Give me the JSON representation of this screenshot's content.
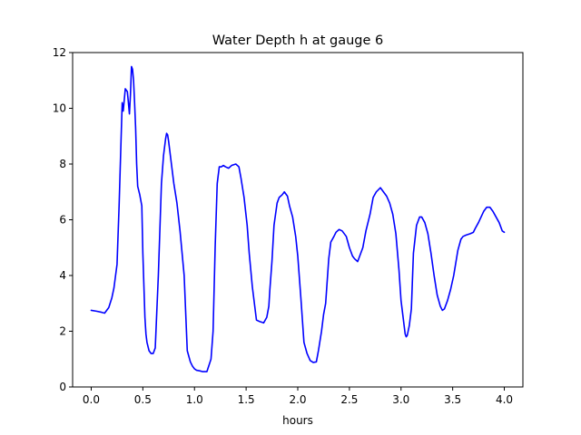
{
  "chart_data": {
    "type": "line",
    "title": "Water Depth h at gauge 6",
    "xlabel": "hours",
    "ylabel": "",
    "xlim": [
      -0.18,
      4.18
    ],
    "ylim": [
      0,
      12
    ],
    "xticks": [
      "0.0",
      "0.5",
      "1.0",
      "1.5",
      "2.0",
      "2.5",
      "3.0",
      "3.5",
      "4.0"
    ],
    "yticks": [
      "0",
      "2",
      "4",
      "6",
      "8",
      "10",
      "12"
    ],
    "grid": false,
    "colors": {
      "line": "#0000ff"
    },
    "series": [
      {
        "x": [
          0.0,
          0.05,
          0.1,
          0.13,
          0.17,
          0.2,
          0.22,
          0.25,
          0.27,
          0.29,
          0.3,
          0.31,
          0.32,
          0.33,
          0.35,
          0.36,
          0.37,
          0.38,
          0.39,
          0.4,
          0.41,
          0.42,
          0.43,
          0.44,
          0.45,
          0.47,
          0.49,
          0.5,
          0.52,
          0.53,
          0.54,
          0.55,
          0.56,
          0.58,
          0.6,
          0.62,
          0.65,
          0.68,
          0.7,
          0.72,
          0.73,
          0.74,
          0.75,
          0.76,
          0.77,
          0.78,
          0.8,
          0.83,
          0.86,
          0.9,
          0.93,
          0.96,
          0.98,
          1.0,
          1.02,
          1.05,
          1.08,
          1.12,
          1.16,
          1.18,
          1.2,
          1.22,
          1.24,
          1.26,
          1.28,
          1.3,
          1.33,
          1.36,
          1.4,
          1.43,
          1.45,
          1.48,
          1.51,
          1.53,
          1.56,
          1.6,
          1.63,
          1.67,
          1.7,
          1.72,
          1.73,
          1.75,
          1.77,
          1.8,
          1.82,
          1.85,
          1.87,
          1.9,
          1.92,
          1.95,
          1.98,
          2.0,
          2.03,
          2.06,
          2.09,
          2.12,
          2.15,
          2.18,
          2.2,
          2.23,
          2.25,
          2.27,
          2.3,
          2.32,
          2.35,
          2.37,
          2.4,
          2.43,
          2.47,
          2.5,
          2.53,
          2.55,
          2.58,
          2.6,
          2.63,
          2.66,
          2.7,
          2.73,
          2.76,
          2.8,
          2.83,
          2.86,
          2.89,
          2.92,
          2.95,
          2.98,
          3.0,
          3.02,
          3.03,
          3.04,
          3.05,
          3.06,
          3.08,
          3.1,
          3.12,
          3.15,
          3.18,
          3.2,
          3.23,
          3.26,
          3.29,
          3.32,
          3.35,
          3.38,
          3.4,
          3.42,
          3.45,
          3.48,
          3.51,
          3.55,
          3.58,
          3.6,
          3.63,
          3.67,
          3.7,
          3.72,
          3.75,
          3.8,
          3.83,
          3.86,
          3.89,
          3.92,
          3.95,
          3.98,
          4.0
        ],
        "y": [
          2.75,
          2.72,
          2.68,
          2.65,
          2.85,
          3.2,
          3.55,
          4.4,
          6.5,
          9.0,
          10.2,
          9.9,
          10.3,
          10.7,
          10.6,
          10.2,
          9.8,
          10.5,
          11.5,
          11.4,
          11.0,
          10.2,
          9.3,
          8.0,
          7.2,
          6.9,
          6.5,
          4.8,
          2.5,
          1.9,
          1.6,
          1.45,
          1.3,
          1.2,
          1.2,
          1.4,
          4.0,
          7.3,
          8.3,
          8.9,
          9.1,
          9.05,
          8.8,
          8.5,
          8.2,
          7.9,
          7.3,
          6.6,
          5.6,
          4.0,
          1.3,
          0.9,
          0.75,
          0.65,
          0.6,
          0.58,
          0.55,
          0.55,
          1.0,
          2.0,
          5.0,
          7.3,
          7.9,
          7.9,
          7.95,
          7.9,
          7.85,
          7.95,
          8.0,
          7.9,
          7.5,
          6.8,
          5.8,
          4.8,
          3.6,
          2.4,
          2.35,
          2.3,
          2.5,
          2.9,
          3.5,
          4.5,
          5.8,
          6.6,
          6.8,
          6.9,
          7.0,
          6.85,
          6.5,
          6.1,
          5.4,
          4.7,
          3.2,
          1.6,
          1.2,
          0.95,
          0.88,
          0.9,
          1.3,
          2.0,
          2.6,
          3.0,
          4.6,
          5.2,
          5.4,
          5.55,
          5.65,
          5.6,
          5.4,
          5.0,
          4.7,
          4.6,
          4.5,
          4.7,
          5.0,
          5.6,
          6.2,
          6.8,
          7.0,
          7.15,
          7.0,
          6.85,
          6.6,
          6.2,
          5.5,
          4.2,
          3.1,
          2.5,
          2.2,
          1.9,
          1.8,
          1.85,
          2.2,
          2.8,
          4.8,
          5.8,
          6.1,
          6.1,
          5.9,
          5.5,
          4.8,
          4.0,
          3.3,
          2.9,
          2.75,
          2.8,
          3.1,
          3.5,
          4.0,
          4.9,
          5.3,
          5.4,
          5.45,
          5.5,
          5.55,
          5.7,
          5.9,
          6.3,
          6.45,
          6.45,
          6.3,
          6.1,
          5.9,
          5.6,
          5.55
        ]
      }
    ]
  }
}
